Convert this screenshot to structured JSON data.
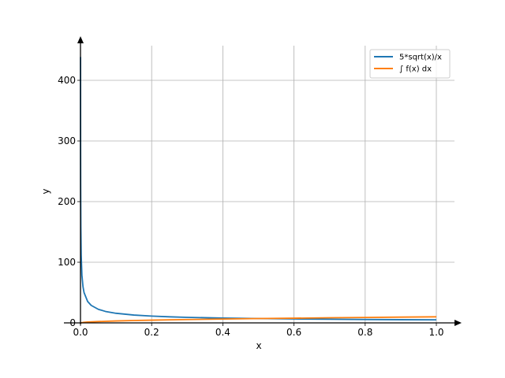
{
  "chart_data": {
    "type": "line",
    "title": "",
    "xlabel": "x",
    "ylabel": "y",
    "xlim": [
      0,
      1
    ],
    "ylim": [
      0,
      460
    ],
    "grid": true,
    "legend_position": "top-right",
    "x_ticks": [
      {
        "value": 0.0,
        "label": "0.0"
      },
      {
        "value": 0.2,
        "label": "0.2"
      },
      {
        "value": 0.4,
        "label": "0.4"
      },
      {
        "value": 0.6,
        "label": "0.6"
      },
      {
        "value": 0.8,
        "label": "0.8"
      },
      {
        "value": 1.0,
        "label": "1.0"
      }
    ],
    "y_ticks": [
      {
        "value": 0,
        "label": "0"
      },
      {
        "value": 100,
        "label": "100"
      },
      {
        "value": 200,
        "label": "200"
      },
      {
        "value": 300,
        "label": "300"
      },
      {
        "value": 400,
        "label": "400"
      }
    ],
    "series": [
      {
        "name": "5*sqrt(x)/x",
        "color": "#1f77b4",
        "x": [
          0.00013,
          0.0003,
          0.0005,
          0.001,
          0.002,
          0.004,
          0.007,
          0.01,
          0.02,
          0.03,
          0.05,
          0.07,
          0.1,
          0.15,
          0.2,
          0.25,
          0.3,
          0.4,
          0.5,
          0.6,
          0.7,
          0.8,
          0.9,
          1.0
        ],
        "y": [
          438.5,
          288.7,
          223.6,
          158.1,
          111.8,
          79.1,
          59.8,
          50.0,
          35.4,
          28.9,
          22.4,
          18.9,
          15.8,
          12.9,
          11.2,
          10.0,
          9.1,
          7.9,
          7.1,
          6.5,
          6.0,
          5.6,
          5.3,
          5.0
        ]
      },
      {
        "name": "∫ f(x) dx",
        "color": "#ff7f0e",
        "x": [
          0.0,
          0.01,
          0.02,
          0.05,
          0.1,
          0.15,
          0.2,
          0.25,
          0.3,
          0.4,
          0.5,
          0.6,
          0.7,
          0.8,
          0.9,
          1.0
        ],
        "y": [
          0.0,
          1.0,
          1.4,
          2.2,
          3.2,
          3.9,
          4.5,
          5.0,
          5.5,
          6.3,
          7.1,
          7.7,
          8.4,
          8.9,
          9.5,
          10.0
        ]
      }
    ]
  }
}
